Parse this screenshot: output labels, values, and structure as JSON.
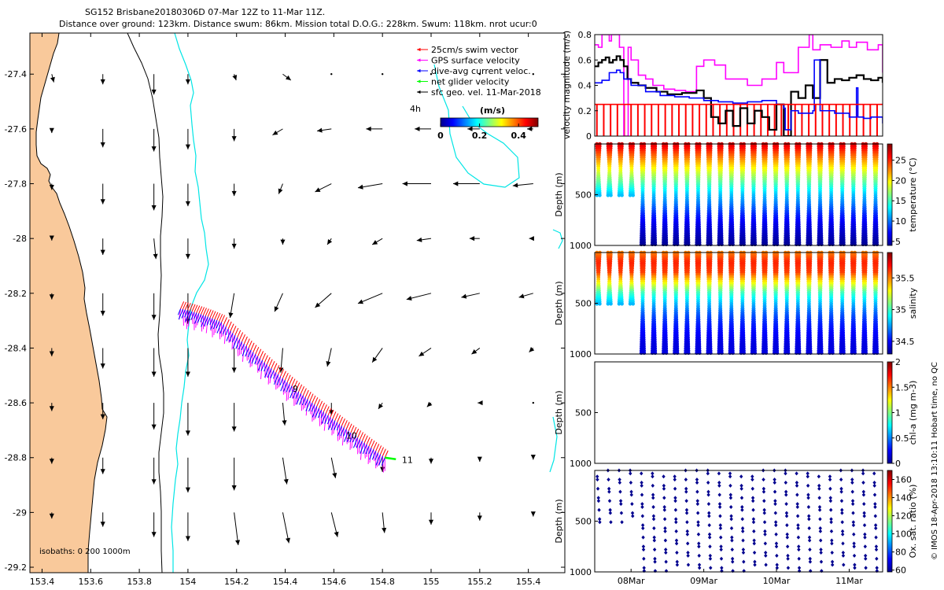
{
  "title_line1": "SG152 Brisbane20180306D 07-Mar 12Z to 11-Mar 11Z.",
  "title_line2": "Distance over ground: 123km. Distance swum: 86km. Mission total D.O.G.: 228km. Swum: 118km. nrot ucur:0",
  "credit": "© IMOS 18-Apr-2018 13:10:11 Hobart time, no QC",
  "colors": {
    "land": "#f9c99b",
    "isobath_200": "#00e5e5",
    "swim": "#ff0000",
    "gps": "#ff00ff",
    "current": "#0000ff",
    "net": "#00ff00",
    "magnitude_black": "#000000"
  },
  "chart_data": [
    {
      "id": "map",
      "type": "vector-map",
      "xlim": [
        153.35,
        155.55
      ],
      "ylim": [
        -29.22,
        -27.25
      ],
      "x_ticks": [
        153.4,
        153.6,
        153.8,
        154,
        154.2,
        154.4,
        154.6,
        154.8,
        155,
        155.2,
        155.4
      ],
      "x_tick_labels": [
        "153.4",
        "153.6",
        "153.8",
        "154",
        "154.2",
        "154.4",
        "154.6",
        "154.8",
        "155",
        "155.2",
        "155.4"
      ],
      "y_ticks": [
        -27.4,
        -27.6,
        -27.8,
        -28,
        -28.2,
        -28.4,
        -28.6,
        -28.8,
        -29,
        -29.2
      ],
      "y_tick_labels": [
        "-27.4",
        "-27.6",
        "-27.8",
        "-28",
        "-28.2",
        "-28.4",
        "-28.6",
        "-28.8",
        "-29",
        "-29.2"
      ],
      "legend": [
        {
          "label": "25cm/s swim vector",
          "color": "#ff0000"
        },
        {
          "label": "GPS surface velocity",
          "color": "#ff00ff"
        },
        {
          "label": "dive-avg current veloc.",
          "color": "#0000ff"
        },
        {
          "label": "net glider velocity",
          "color": "#00ff00"
        },
        {
          "label": "sfc geo. vel. 11-Mar-2018",
          "color": "#000000"
        }
      ],
      "colorbar": {
        "label": "(m/s)",
        "ticks": [
          0,
          0.2,
          0.4
        ],
        "tick_labels": [
          "0",
          "0.2",
          "0.4"
        ],
        "range": [
          0,
          0.5
        ]
      },
      "vector_time_label": "4h",
      "isobath_label": "isobaths: 0   200  1000m",
      "track_day_labels": [
        {
          "label": "9",
          "lon": 154.43,
          "lat": -28.56
        },
        {
          "label": "10",
          "lon": 154.65,
          "lat": -28.73
        },
        {
          "label": "11",
          "lon": 154.88,
          "lat": -28.82
        }
      ],
      "track": {
        "start": [
          153.97,
          -28.16
        ],
        "end": [
          154.81,
          -28.8
        ]
      },
      "geostrophic_grid": {
        "lons": [
          153.44,
          153.65,
          153.86,
          154.0,
          154.19,
          154.39,
          154.59,
          154.8,
          155.0,
          155.2,
          155.42
        ],
        "lats": [
          -27.4,
          -27.6,
          -27.8,
          -28.0,
          -28.2,
          -28.4,
          -28.6,
          -28.8,
          -29.0
        ],
        "u": [
          [
            0.01,
            0.0,
            0.0,
            0.0,
            0.01,
            0.04,
            0.0,
            0.0,
            0.0,
            0.0,
            0.0
          ],
          [
            0.0,
            0.0,
            0.0,
            0.0,
            0.0,
            -0.05,
            -0.07,
            -0.08,
            -0.08,
            -0.06,
            -0.03
          ],
          [
            0.0,
            0.0,
            0.0,
            0.0,
            0.0,
            -0.02,
            -0.08,
            -0.12,
            -0.14,
            -0.13,
            -0.1
          ],
          [
            0.0,
            0.0,
            0.01,
            0.0,
            0.0,
            0.0,
            -0.02,
            -0.05,
            -0.07,
            -0.05,
            -0.02
          ],
          [
            0.0,
            0.0,
            0.0,
            0.0,
            -0.02,
            -0.04,
            -0.08,
            -0.12,
            -0.12,
            -0.09,
            -0.07
          ],
          [
            0.0,
            0.0,
            0.0,
            0.0,
            0.0,
            -0.01,
            -0.02,
            -0.05,
            -0.06,
            -0.04,
            -0.02
          ],
          [
            0.0,
            0.0,
            0.0,
            0.0,
            0.0,
            0.01,
            0.0,
            -0.02,
            -0.02,
            -0.01,
            0.0
          ],
          [
            0.0,
            0.0,
            0.0,
            0.0,
            0.0,
            0.02,
            0.02,
            0.0,
            0.0,
            0.0,
            0.0
          ],
          [
            0.0,
            0.0,
            0.0,
            0.0,
            0.02,
            0.03,
            0.03,
            0.01,
            0.0,
            0.0,
            0.0
          ]
        ],
        "v": [
          [
            -0.04,
            -0.05,
            -0.1,
            -0.05,
            -0.03,
            -0.03,
            0.0,
            0.0,
            0.0,
            0.0,
            0.0
          ],
          [
            -0.02,
            -0.09,
            -0.11,
            -0.1,
            -0.06,
            -0.03,
            -0.01,
            0.0,
            0.0,
            0.0,
            0.0
          ],
          [
            -0.03,
            -0.1,
            -0.13,
            -0.11,
            -0.06,
            -0.05,
            -0.04,
            -0.02,
            0.0,
            0.0,
            -0.01
          ],
          [
            -0.01,
            -0.08,
            -0.1,
            -0.1,
            -0.05,
            -0.03,
            -0.03,
            -0.03,
            -0.01,
            0.0,
            0.0
          ],
          [
            -0.03,
            -0.11,
            -0.13,
            -0.15,
            -0.12,
            -0.09,
            -0.07,
            -0.05,
            -0.03,
            -0.02,
            -0.02
          ],
          [
            -0.04,
            -0.1,
            -0.14,
            -0.14,
            -0.12,
            -0.12,
            -0.09,
            -0.07,
            -0.04,
            -0.03,
            -0.02
          ],
          [
            -0.04,
            -0.08,
            -0.13,
            -0.16,
            -0.14,
            -0.11,
            -0.06,
            -0.03,
            -0.02,
            0.0,
            0.0
          ],
          [
            -0.03,
            -0.08,
            -0.13,
            -0.17,
            -0.16,
            -0.13,
            -0.1,
            -0.07,
            -0.03,
            -0.02,
            -0.01
          ],
          [
            -0.03,
            -0.07,
            -0.12,
            -0.14,
            -0.16,
            -0.15,
            -0.12,
            -0.1,
            -0.06,
            -0.04,
            -0.02
          ]
        ]
      }
    },
    {
      "id": "velocity",
      "type": "line",
      "ylabel": "velocity magnitude (m/s)",
      "ylim": [
        0,
        0.8
      ],
      "y_ticks": [
        0,
        0.2,
        0.4,
        0.6,
        0.8
      ],
      "y_tick_labels": [
        "0",
        "0.2",
        "0.4",
        "0.6",
        "0.8"
      ],
      "xlim_days": [
        7.5,
        11.46
      ],
      "series": [
        {
          "color": "#ff00ff",
          "x": [
            7.5,
            7.55,
            7.6,
            7.62,
            7.7,
            7.73,
            7.8,
            7.84,
            7.9,
            7.92,
            7.96,
            8.0,
            8.1,
            8.2,
            8.3,
            8.45,
            8.6,
            8.75,
            8.9,
            9.0,
            9.15,
            9.3,
            9.5,
            9.6,
            9.8,
            10.0,
            10.1,
            10.3,
            10.45,
            10.5,
            10.6,
            10.75,
            10.9,
            11.0,
            11.1,
            11.25,
            11.4,
            11.46
          ],
          "y": [
            0.72,
            0.7,
            0.8,
            0.8,
            0.75,
            0.8,
            0.8,
            0.7,
            0.0,
            0.0,
            0.7,
            0.6,
            0.48,
            0.45,
            0.4,
            0.37,
            0.36,
            0.35,
            0.55,
            0.6,
            0.56,
            0.45,
            0.45,
            0.4,
            0.45,
            0.58,
            0.5,
            0.7,
            0.8,
            0.68,
            0.72,
            0.7,
            0.75,
            0.7,
            0.74,
            0.68,
            0.72,
            0.5
          ]
        },
        {
          "color": "#000000",
          "x": [
            7.5,
            7.55,
            7.6,
            7.65,
            7.7,
            7.75,
            7.8,
            7.85,
            7.9,
            7.95,
            8.0,
            8.1,
            8.2,
            8.35,
            8.5,
            8.7,
            8.9,
            9.0,
            9.1,
            9.2,
            9.3,
            9.4,
            9.5,
            9.6,
            9.7,
            9.8,
            9.9,
            10.0,
            10.1,
            10.2,
            10.3,
            10.4,
            10.5,
            10.6,
            10.7,
            10.8,
            10.9,
            11.0,
            11.1,
            11.2,
            11.3,
            11.4,
            11.46
          ],
          "y": [
            0.55,
            0.58,
            0.6,
            0.62,
            0.58,
            0.6,
            0.63,
            0.6,
            0.55,
            0.45,
            0.42,
            0.4,
            0.38,
            0.35,
            0.33,
            0.34,
            0.36,
            0.3,
            0.15,
            0.1,
            0.2,
            0.08,
            0.22,
            0.1,
            0.2,
            0.15,
            0.05,
            0.25,
            0.0,
            0.35,
            0.3,
            0.4,
            0.3,
            0.6,
            0.42,
            0.45,
            0.44,
            0.46,
            0.48,
            0.45,
            0.44,
            0.46,
            0.42
          ]
        },
        {
          "color": "#0000ff",
          "x": [
            7.5,
            7.6,
            7.7,
            7.8,
            7.85,
            7.9,
            8.0,
            8.2,
            8.4,
            8.6,
            8.8,
            9.0,
            9.2,
            9.4,
            9.6,
            9.8,
            10.0,
            10.1,
            10.12,
            10.2,
            10.3,
            10.5,
            10.52,
            10.6,
            10.8,
            11.0,
            11.1,
            11.12,
            11.2,
            11.3,
            11.46
          ],
          "y": [
            0.42,
            0.44,
            0.5,
            0.52,
            0.5,
            0.45,
            0.4,
            0.35,
            0.32,
            0.31,
            0.3,
            0.28,
            0.27,
            0.26,
            0.27,
            0.28,
            0.25,
            0.22,
            0.05,
            0.2,
            0.18,
            0.2,
            0.6,
            0.2,
            0.18,
            0.15,
            0.38,
            0.15,
            0.14,
            0.15,
            0.1
          ]
        },
        {
          "color": "#ff0000",
          "x": [
            7.5,
            11.46
          ],
          "y": [
            0.25,
            0.25
          ]
        }
      ]
    },
    {
      "id": "temperature",
      "type": "scatter-section",
      "ylabel": "Depth (m)",
      "clabel": "temperature (°C)",
      "ylim": [
        1000,
        0
      ],
      "y_ticks": [
        500,
        1000
      ],
      "y_tick_labels": [
        "500",
        "1000"
      ],
      "crange": [
        4,
        29
      ],
      "c_ticks": [
        5,
        10,
        15,
        20,
        25
      ],
      "c_tick_labels": [
        "5",
        "10",
        "15",
        "20",
        "25"
      ],
      "profile": {
        "depth": [
          0,
          100,
          200,
          300,
          400,
          500,
          600,
          700,
          800,
          900,
          1000
        ],
        "value": [
          27,
          24,
          21,
          18,
          15,
          12,
          10,
          8,
          6.5,
          5.5,
          4.5
        ]
      }
    },
    {
      "id": "salinity",
      "type": "scatter-section",
      "ylabel": "Depth (m)",
      "clabel": "salinity",
      "ylim": [
        1000,
        0
      ],
      "y_ticks": [
        500,
        1000
      ],
      "y_tick_labels": [
        "500",
        "1000"
      ],
      "crange": [
        34.3,
        35.9
      ],
      "c_ticks": [
        34.5,
        35,
        35.5
      ],
      "c_tick_labels": [
        "34.5",
        "35",
        "35.5"
      ],
      "profile": {
        "depth": [
          0,
          100,
          200,
          300,
          400,
          500,
          600,
          700,
          800,
          900,
          1000
        ],
        "value": [
          35.5,
          35.65,
          35.6,
          35.3,
          35.0,
          34.8,
          34.65,
          34.55,
          34.5,
          34.45,
          34.45
        ]
      }
    },
    {
      "id": "chla",
      "type": "scatter-section",
      "ylabel": "Depth (m)",
      "clabel": "chl-a (mg m-3)",
      "ylim": [
        1000,
        0
      ],
      "y_ticks": [
        500,
        1000
      ],
      "y_tick_labels": [
        "500",
        "1000"
      ],
      "crange": [
        0,
        2
      ],
      "c_ticks": [
        0,
        0.5,
        1,
        1.5,
        2
      ],
      "c_tick_labels": [
        "0",
        "0.5",
        "1",
        "1.5",
        "2"
      ]
    },
    {
      "id": "oxygen",
      "type": "scatter-section",
      "ylabel": "Depth (m)",
      "clabel": "Ox. sat. ratio (%)",
      "ylim": [
        1000,
        0
      ],
      "y_ticks": [
        500,
        1000
      ],
      "y_tick_labels": [
        "500",
        "1000"
      ],
      "crange": [
        58,
        170
      ],
      "c_ticks": [
        60,
        80,
        100,
        120,
        140,
        160
      ],
      "c_tick_labels": [
        "60",
        "80",
        "100",
        "120",
        "140",
        "160"
      ],
      "x_ticks": [
        8,
        9,
        10,
        11
      ],
      "x_tick_labels": [
        "08Mar",
        "09Mar",
        "10Mar",
        "11Mar"
      ]
    }
  ]
}
